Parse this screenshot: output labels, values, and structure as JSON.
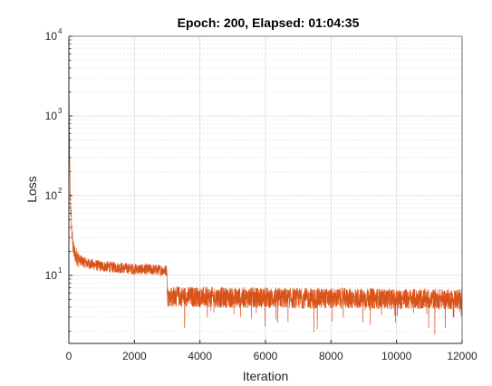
{
  "chart_data": {
    "type": "line",
    "title": "Epoch: 200, Elapsed: 01:04:35",
    "xlabel": "Iteration",
    "ylabel": "Loss",
    "xlim": [
      0,
      12000
    ],
    "ylim": [
      1.4,
      10000
    ],
    "yscale": "log",
    "grid": true,
    "minor_grid": true,
    "x_ticks": [
      0,
      2000,
      4000,
      6000,
      8000,
      10000,
      12000
    ],
    "x_tick_labels": [
      "0",
      "2000",
      "4000",
      "6000",
      "8000",
      "10000",
      "12000"
    ],
    "y_ticks": [
      10,
      100,
      1000,
      10000
    ],
    "y_tick_labels": [
      {
        "base": "10",
        "exp": "1"
      },
      {
        "base": "10",
        "exp": "2"
      },
      {
        "base": "10",
        "exp": "3"
      },
      {
        "base": "10",
        "exp": "4"
      }
    ],
    "series_color": "#D95319",
    "series": [
      {
        "x": [
          0,
          5,
          10,
          20,
          30,
          40,
          60,
          80,
          100,
          120,
          150,
          200,
          250,
          300,
          400,
          500,
          600,
          800,
          1000,
          1500,
          2000,
          2500,
          2990,
          3010,
          3500,
          4000,
          5000,
          6000,
          7000,
          8000,
          9000,
          10000,
          11000,
          12000
        ],
        "y": [
          9000,
          2500,
          1000,
          400,
          180,
          110,
          70,
          45,
          30,
          24,
          20,
          18,
          17,
          16,
          15,
          14.5,
          14,
          13.5,
          13,
          12.5,
          12,
          11.8,
          11.5,
          5.6,
          5.6,
          5.5,
          5.4,
          5.4,
          5.3,
          5.3,
          5.3,
          5.2,
          5.2,
          5.2
        ]
      }
    ]
  }
}
